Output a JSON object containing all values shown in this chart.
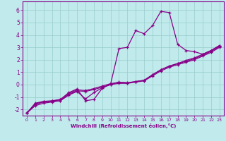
{
  "xlabel": "Windchill (Refroidissement éolien,°C)",
  "bg_color": "#c0eaec",
  "line_color": "#880088",
  "grid_color": "#99cccc",
  "xlim": [
    -0.5,
    23.5
  ],
  "ylim": [
    -2.5,
    6.7
  ],
  "xticks": [
    0,
    1,
    2,
    3,
    4,
    5,
    6,
    7,
    8,
    9,
    10,
    11,
    12,
    13,
    14,
    15,
    16,
    17,
    18,
    19,
    20,
    21,
    22,
    23
  ],
  "yticks": [
    -2,
    -1,
    0,
    1,
    2,
    3,
    4,
    5,
    6
  ],
  "series": [
    {
      "x": [
        0,
        1,
        2,
        3,
        4,
        5,
        6,
        7,
        8,
        9,
        10,
        11,
        12,
        13,
        14,
        15,
        16,
        17,
        18,
        19,
        20,
        21,
        22,
        23
      ],
      "y": [
        -2.3,
        -1.7,
        -1.5,
        -1.4,
        -1.3,
        -0.8,
        -0.5,
        -0.55,
        -0.4,
        -0.2,
        0.0,
        0.1,
        0.1,
        0.2,
        0.3,
        0.7,
        1.1,
        1.4,
        1.6,
        1.8,
        2.0,
        2.3,
        2.6,
        3.0
      ]
    },
    {
      "x": [
        0,
        1,
        2,
        3,
        4,
        5,
        6,
        7,
        8,
        9,
        10,
        11,
        12,
        13,
        14,
        15,
        16,
        17,
        18,
        19,
        20,
        21,
        22,
        23
      ],
      "y": [
        -2.3,
        -1.6,
        -1.4,
        -1.35,
        -1.3,
        -0.85,
        -0.55,
        -1.15,
        -0.65,
        -0.25,
        0.0,
        0.2,
        0.15,
        0.25,
        0.35,
        0.8,
        1.2,
        1.5,
        1.7,
        1.95,
        2.15,
        2.45,
        2.75,
        3.15
      ]
    },
    {
      "x": [
        0,
        1,
        2,
        3,
        4,
        5,
        6,
        7,
        8,
        9,
        10,
        11,
        12,
        13,
        14,
        15,
        16,
        17,
        18,
        19,
        20,
        21,
        22,
        23
      ],
      "y": [
        -2.3,
        -1.5,
        -1.35,
        -1.3,
        -1.2,
        -0.65,
        -0.35,
        -1.3,
        -1.2,
        -0.3,
        0.05,
        2.9,
        3.0,
        4.35,
        4.1,
        4.75,
        5.9,
        5.8,
        3.25,
        2.75,
        2.65,
        2.45,
        2.75,
        3.15
      ]
    },
    {
      "x": [
        0,
        1,
        2,
        3,
        4,
        5,
        6,
        7,
        8,
        9,
        10,
        11,
        12,
        13,
        14,
        15,
        16,
        17,
        18,
        19,
        20,
        21,
        22,
        23
      ],
      "y": [
        -2.3,
        -1.55,
        -1.38,
        -1.33,
        -1.22,
        -0.72,
        -0.42,
        -0.48,
        -0.32,
        -0.12,
        0.08,
        0.18,
        0.14,
        0.24,
        0.34,
        0.77,
        1.18,
        1.48,
        1.68,
        1.88,
        2.08,
        2.38,
        2.68,
        3.08
      ]
    }
  ]
}
